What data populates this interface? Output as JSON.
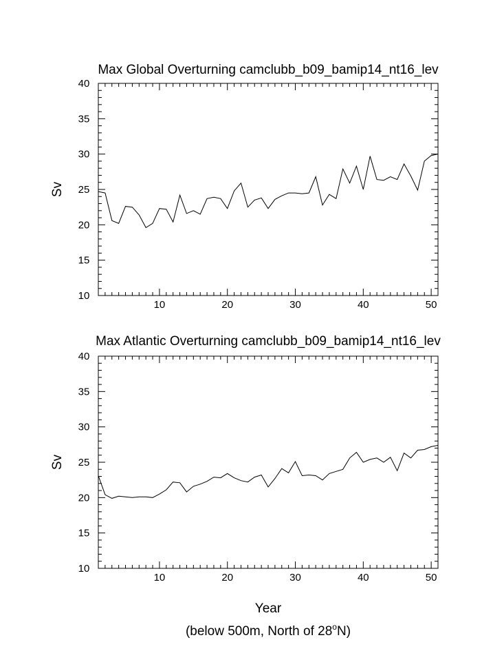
{
  "figure": {
    "xlabel": "Year",
    "note": {
      "text": "(below 500m, North of 28",
      "sup": "o",
      "tail": "N)"
    }
  },
  "chart_data": [
    {
      "type": "line",
      "title": "Max Global Overturning camclubb_b09_bamip14_nt16_lev",
      "ylabel": "Sv",
      "xlim": [
        1,
        51
      ],
      "ylim": [
        10,
        40
      ],
      "xticks": [
        10,
        20,
        30,
        40,
        50
      ],
      "yticks": [
        10,
        15,
        20,
        25,
        30,
        35,
        40
      ],
      "x": [
        1,
        2,
        3,
        4,
        5,
        6,
        7,
        8,
        9,
        10,
        11,
        12,
        13,
        14,
        15,
        16,
        17,
        18,
        19,
        20,
        21,
        22,
        23,
        24,
        25,
        26,
        27,
        28,
        29,
        30,
        31,
        32,
        33,
        34,
        35,
        36,
        37,
        38,
        39,
        40,
        41,
        42,
        43,
        44,
        45,
        46,
        47,
        48,
        49,
        50,
        51
      ],
      "y": [
        24.7,
        24.5,
        20.6,
        20.2,
        22.6,
        22.5,
        21.4,
        19.6,
        20.2,
        22.3,
        22.2,
        20.4,
        24.2,
        21.6,
        22.0,
        21.5,
        23.7,
        23.9,
        23.7,
        22.3,
        24.8,
        25.9,
        22.5,
        23.5,
        23.8,
        22.3,
        23.6,
        24.1,
        24.5,
        24.5,
        24.4,
        24.5,
        26.8,
        22.8,
        24.3,
        23.7,
        27.9,
        25.9,
        28.3,
        25.0,
        29.7,
        26.4,
        26.3,
        26.8,
        26.4,
        28.6,
        26.9,
        24.9,
        29.0,
        29.8,
        30.0
      ]
    },
    {
      "type": "line",
      "title": "Max Atlantic Overturning camclubb_b09_bamip14_nt16_lev",
      "ylabel": "Sv",
      "xlim": [
        1,
        51
      ],
      "ylim": [
        10,
        40
      ],
      "xticks": [
        10,
        20,
        30,
        40,
        50
      ],
      "yticks": [
        10,
        15,
        20,
        25,
        30,
        35,
        40
      ],
      "x": [
        1,
        2,
        3,
        4,
        5,
        6,
        7,
        8,
        9,
        10,
        11,
        12,
        13,
        14,
        15,
        16,
        17,
        18,
        19,
        20,
        21,
        22,
        23,
        24,
        25,
        26,
        27,
        28,
        29,
        30,
        31,
        32,
        33,
        34,
        35,
        36,
        37,
        38,
        39,
        40,
        41,
        42,
        43,
        44,
        45,
        46,
        47,
        48,
        49,
        50,
        51
      ],
      "y": [
        23.1,
        20.4,
        19.9,
        20.2,
        20.1,
        20.0,
        20.1,
        20.1,
        20.0,
        20.5,
        21.1,
        22.2,
        22.1,
        20.8,
        21.6,
        21.9,
        22.3,
        22.9,
        22.8,
        23.4,
        22.8,
        22.4,
        22.2,
        22.9,
        23.2,
        21.5,
        22.7,
        24.1,
        23.5,
        25.1,
        23.1,
        23.2,
        23.1,
        22.5,
        23.4,
        23.7,
        24.0,
        25.6,
        26.4,
        25.0,
        25.4,
        25.6,
        25.0,
        25.7,
        23.8,
        26.3,
        25.6,
        26.7,
        26.8,
        27.2,
        27.4
      ]
    }
  ]
}
